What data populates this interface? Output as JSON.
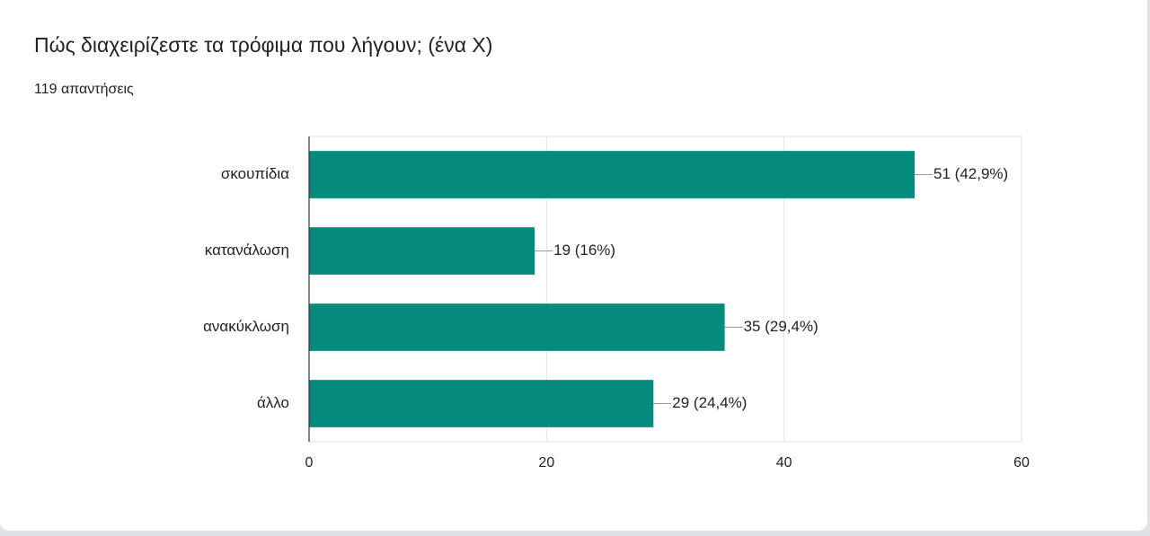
{
  "chart_data": {
    "type": "bar",
    "orientation": "horizontal",
    "title": "Πώς διαχειρίζεστε τα τρόφιμα που λήγουν; (ένα Χ)",
    "subtitle": "119 απαντήσεις",
    "categories": [
      "σκουπίδια",
      "κατανάλωση",
      "ανακύκλωση",
      "άλλο"
    ],
    "values": [
      51,
      19,
      35,
      29
    ],
    "value_labels": [
      "51 (42,9%)",
      "19 (16%)",
      "35 (29,4%)",
      "29 (24,4%)"
    ],
    "color": "#058a7e",
    "xlim": [
      0,
      60
    ],
    "xticks": [
      0,
      20,
      40,
      60
    ],
    "grid": true
  }
}
